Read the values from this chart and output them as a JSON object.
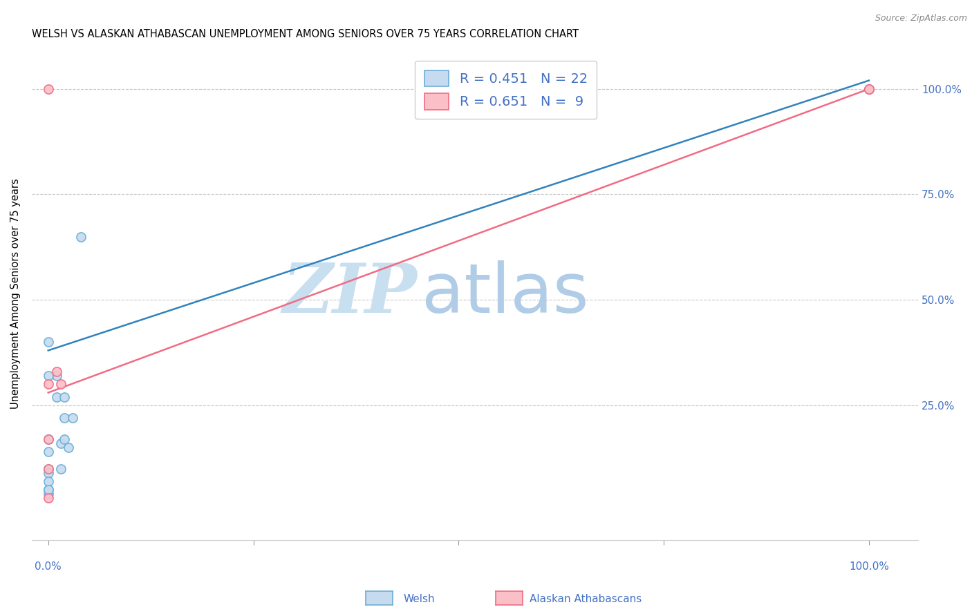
{
  "title": "WELSH VS ALASKAN ATHABASCAN UNEMPLOYMENT AMONG SENIORS OVER 75 YEARS CORRELATION CHART",
  "source": "Source: ZipAtlas.com",
  "ylabel": "Unemployment Among Seniors over 75 years",
  "welsh_R": 0.451,
  "welsh_N": 22,
  "athabascan_R": 0.651,
  "athabascan_N": 9,
  "welsh_color": "#6baed6",
  "welsh_fill": "#c6dbef",
  "athabascan_color": "#f16b84",
  "athabascan_fill": "#fbbfc8",
  "blue_line_color": "#3182bd",
  "pink_line_color": "#f16b84",
  "welsh_scatter_x": [
    0.0,
    0.01,
    0.01,
    0.015,
    0.015,
    0.02,
    0.02,
    0.02,
    0.025,
    0.03,
    0.04,
    0.0,
    0.0,
    0.0,
    0.0,
    0.0,
    1.0,
    1.0,
    0.0,
    0.0,
    0.0,
    0.0
  ],
  "welsh_scatter_y": [
    0.04,
    0.32,
    0.27,
    0.16,
    0.1,
    0.27,
    0.22,
    0.17,
    0.15,
    0.22,
    0.65,
    0.4,
    0.32,
    0.17,
    0.1,
    0.05,
    1.0,
    1.0,
    0.14,
    0.09,
    0.07,
    0.05
  ],
  "athabascan_scatter_x": [
    0.0,
    0.0,
    0.0,
    0.0,
    0.0,
    0.01,
    0.015,
    1.0,
    1.0
  ],
  "athabascan_scatter_y": [
    0.03,
    0.1,
    0.17,
    0.3,
    1.0,
    0.33,
    0.3,
    1.0,
    1.0
  ],
  "blue_line_x0": 0.0,
  "blue_line_y0": 0.38,
  "blue_line_x1": 1.0,
  "blue_line_y1": 1.02,
  "pink_line_x0": 0.0,
  "pink_line_y0": 0.28,
  "pink_line_x1": 1.0,
  "pink_line_y1": 1.0,
  "grid_color": "#c8c8c8",
  "background_color": "#ffffff",
  "watermark_zip": "ZIP",
  "watermark_atlas": "atlas",
  "ytick_values": [
    0.25,
    0.5,
    0.75,
    1.0
  ],
  "ytick_labels_right": [
    "25.0%",
    "50.0%",
    "75.0%",
    "100.0%"
  ],
  "xtick_values": [
    0.0,
    0.25,
    0.5,
    0.75,
    1.0
  ],
  "xlim": [
    -0.02,
    1.06
  ],
  "ylim": [
    -0.07,
    1.1
  ],
  "title_fontsize": 10.5,
  "source_fontsize": 9,
  "tick_fontsize": 11,
  "ylabel_fontsize": 10.5
}
